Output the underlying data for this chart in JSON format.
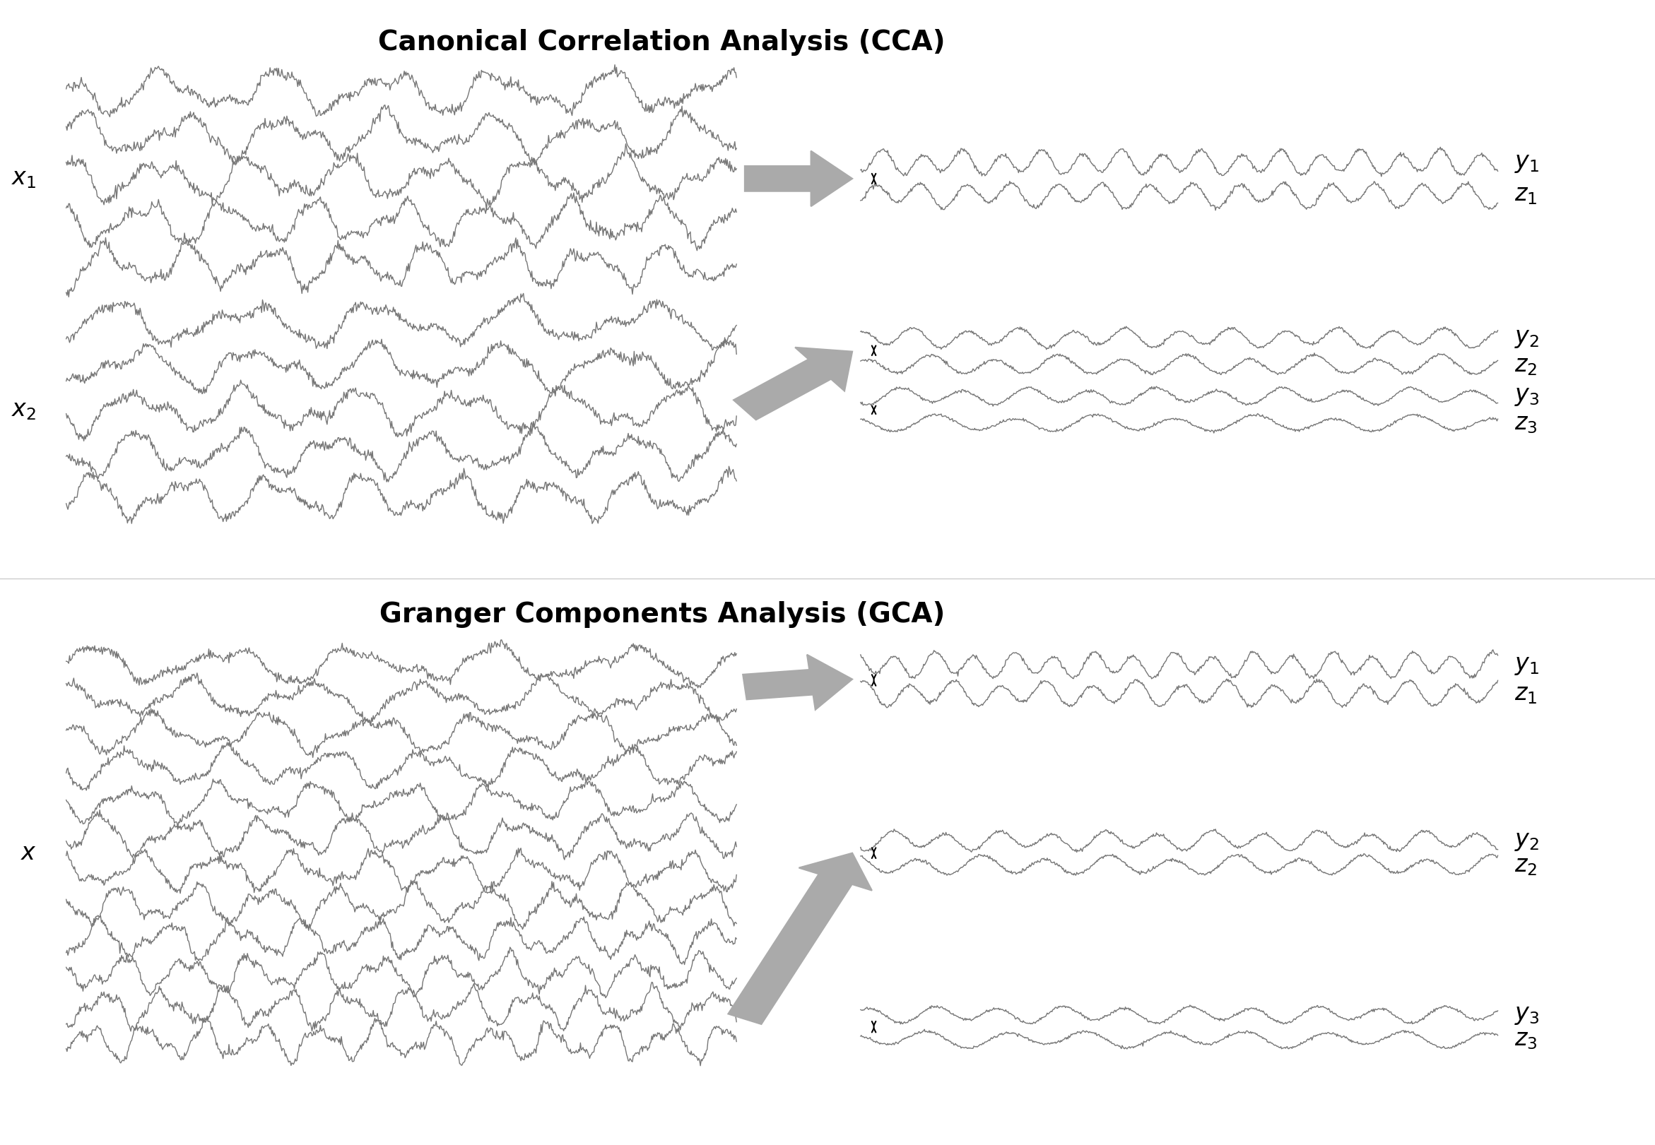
{
  "title_cca": "Canonical Correlation Analysis (CCA)",
  "title_gca": "Granger Components Analysis (GCA)",
  "title_fontsize": 28,
  "label_fontsize": 24,
  "background_color": "#ffffff",
  "wave_color": "#777777",
  "arrow_color": "#aaaaaa",
  "arrow_edge_color": "#999999",
  "text_color": "#000000",
  "wave_linewidth": 1.0,
  "fig_width": 23.42,
  "fig_height": 16.21,
  "seed": 42,
  "n_points": 800
}
